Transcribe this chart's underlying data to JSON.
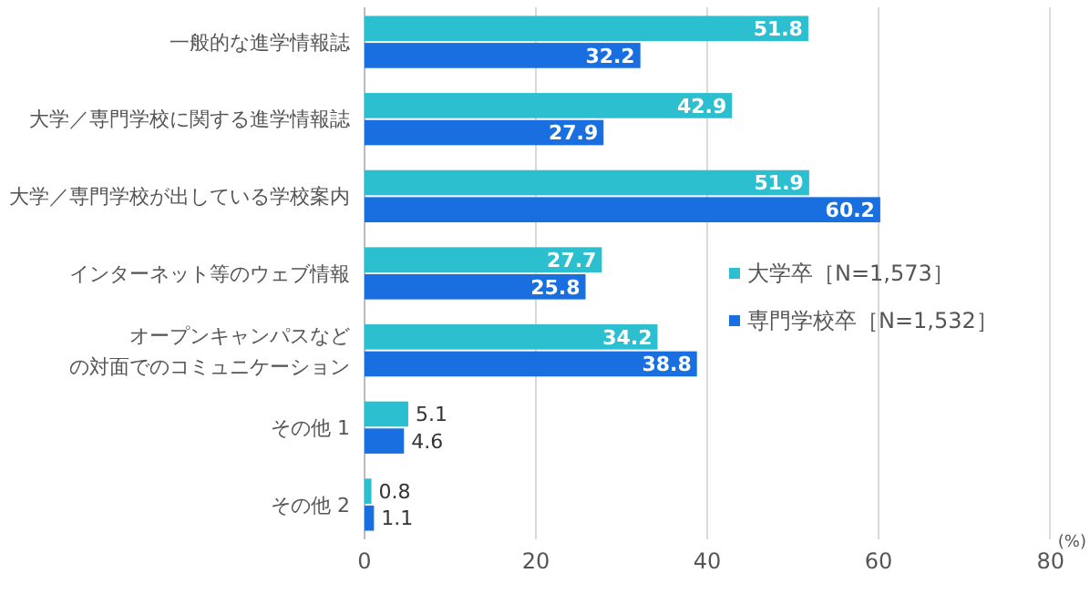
{
  "chart_data": {
    "type": "bar",
    "orientation": "horizontal",
    "xlabel": "(%)",
    "categories": [
      "一般的な進学情報誌",
      "大学／専門学校に関する進学情報誌",
      "大学／専門学校が出している学校案内",
      "インターネット等のウェブ情報",
      "オープンキャンパスなどの対面でのコミュニケーション",
      "その他 1",
      "その他 2"
    ],
    "series": [
      {
        "name": "大学卒［N=1,573］",
        "color": "#2bbfd0",
        "values": [
          51.8,
          42.9,
          51.9,
          27.7,
          34.2,
          5.1,
          0.8
        ]
      },
      {
        "name": "専門学校卒［N=1,532］",
        "color": "#1a6fe0",
        "values": [
          32.2,
          27.9,
          60.2,
          25.8,
          38.8,
          4.6,
          1.1
        ]
      }
    ],
    "xlim": [
      0,
      80
    ],
    "xticks": [
      0,
      20,
      40,
      60,
      80
    ],
    "grid": "x",
    "legend": "right",
    "data_labels": true
  }
}
